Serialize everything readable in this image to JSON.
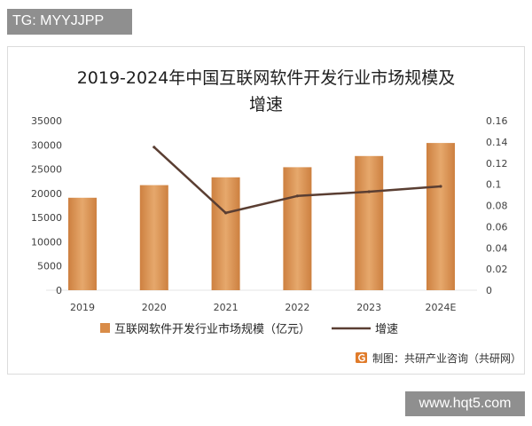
{
  "watermark_tag": {
    "text": "TG: MYYJJPP"
  },
  "site_tag": {
    "text": "www.hqt5.com"
  },
  "chart_data": {
    "type": "bar",
    "title": "2019-2024年中国互联网软件开发行业市场规模及增速",
    "categories": [
      "2019",
      "2020",
      "2021",
      "2022",
      "2023",
      "2024E"
    ],
    "series": [
      {
        "name": "互联网软件开发行业市场规模（亿元）",
        "type": "bar",
        "color": "#d98c48",
        "values": [
          19100,
          21700,
          23300,
          25400,
          27700,
          30400
        ]
      },
      {
        "name": "增速",
        "type": "line",
        "secondary_y": true,
        "color": "#5a3e32",
        "values": [
          null,
          0.135,
          0.073,
          0.089,
          0.093,
          0.098
        ]
      }
    ],
    "y_left": {
      "ylim": [
        0,
        35000
      ],
      "ticks": [
        "35000",
        "30000",
        "25000",
        "20000",
        "15000",
        "10000",
        "5000",
        "0"
      ]
    },
    "y_right": {
      "ylim": [
        0,
        0.16
      ],
      "ticks": [
        "0.16",
        "0.14",
        "0.12",
        "0.1",
        "0.08",
        "0.06",
        "0.04",
        "0.02",
        "0"
      ]
    },
    "grid": false,
    "legend_position": "bottom",
    "source": "制图：共研产业咨询（共研网）",
    "source_icon": "gongyan-logo-icon"
  }
}
